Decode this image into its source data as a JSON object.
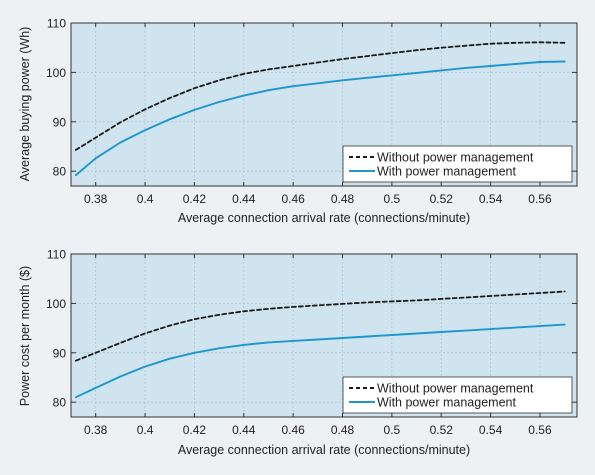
{
  "chart_data": [
    {
      "type": "line",
      "xlabel": "Average connection arrival rate (connections/minute)",
      "ylabel": "Average buying power (Wh)",
      "xlim": [
        0.37,
        0.575
      ],
      "ylim": [
        77,
        110
      ],
      "xticks": [
        0.38,
        0.4,
        0.42,
        0.44,
        0.46,
        0.48,
        0.5,
        0.52,
        0.54,
        0.56
      ],
      "yticks": [
        80,
        90,
        100,
        110
      ],
      "grid": true,
      "legend_position": "bottom-right",
      "series": [
        {
          "name": "Without power management",
          "style": "dashed",
          "color": "#1a1a1a",
          "x": [
            0.372,
            0.38,
            0.39,
            0.4,
            0.41,
            0.42,
            0.43,
            0.44,
            0.45,
            0.46,
            0.47,
            0.48,
            0.49,
            0.5,
            0.51,
            0.52,
            0.53,
            0.54,
            0.55,
            0.56,
            0.57
          ],
          "y": [
            84.3,
            86.8,
            89.9,
            92.5,
            94.8,
            96.8,
            98.4,
            99.7,
            100.6,
            101.3,
            102.0,
            102.7,
            103.3,
            103.9,
            104.5,
            105.0,
            105.4,
            105.8,
            106.0,
            106.1,
            106.0
          ]
        },
        {
          "name": "With power management",
          "style": "solid",
          "color": "#1e96d0",
          "x": [
            0.372,
            0.38,
            0.39,
            0.4,
            0.41,
            0.42,
            0.43,
            0.44,
            0.45,
            0.46,
            0.47,
            0.48,
            0.49,
            0.5,
            0.51,
            0.52,
            0.53,
            0.54,
            0.55,
            0.56,
            0.57
          ],
          "y": [
            79.2,
            82.6,
            85.8,
            88.3,
            90.5,
            92.4,
            94.0,
            95.3,
            96.4,
            97.2,
            97.8,
            98.4,
            98.9,
            99.4,
            99.9,
            100.4,
            100.9,
            101.3,
            101.7,
            102.1,
            102.2
          ]
        }
      ]
    },
    {
      "type": "line",
      "xlabel": "Average connection arrival rate (connections/minute)",
      "ylabel": "Power cost per month ($)",
      "xlim": [
        0.37,
        0.575
      ],
      "ylim": [
        77,
        110
      ],
      "xticks": [
        0.38,
        0.4,
        0.42,
        0.44,
        0.46,
        0.48,
        0.5,
        0.52,
        0.54,
        0.56
      ],
      "yticks": [
        80,
        90,
        100,
        110
      ],
      "grid": true,
      "legend_position": "bottom-right",
      "series": [
        {
          "name": "Without power management",
          "style": "dashed",
          "color": "#1a1a1a",
          "x": [
            0.372,
            0.38,
            0.39,
            0.4,
            0.41,
            0.42,
            0.43,
            0.44,
            0.45,
            0.46,
            0.47,
            0.48,
            0.49,
            0.5,
            0.51,
            0.52,
            0.53,
            0.54,
            0.55,
            0.56,
            0.57
          ],
          "y": [
            88.4,
            90.0,
            92.0,
            93.9,
            95.5,
            96.8,
            97.7,
            98.4,
            98.9,
            99.3,
            99.6,
            99.9,
            100.2,
            100.4,
            100.6,
            100.9,
            101.2,
            101.5,
            101.8,
            102.1,
            102.4
          ]
        },
        {
          "name": "With power management",
          "style": "solid",
          "color": "#1e96d0",
          "x": [
            0.372,
            0.38,
            0.39,
            0.4,
            0.41,
            0.42,
            0.43,
            0.44,
            0.45,
            0.46,
            0.47,
            0.48,
            0.49,
            0.5,
            0.51,
            0.52,
            0.53,
            0.54,
            0.55,
            0.56,
            0.57
          ],
          "y": [
            81.0,
            82.9,
            85.2,
            87.2,
            88.8,
            90.0,
            90.9,
            91.6,
            92.1,
            92.4,
            92.7,
            93.0,
            93.3,
            93.6,
            93.9,
            94.2,
            94.5,
            94.8,
            95.1,
            95.4,
            95.7
          ]
        }
      ]
    }
  ]
}
